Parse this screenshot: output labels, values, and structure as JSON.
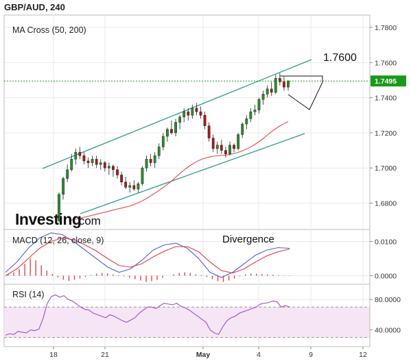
{
  "title": "GBP/AUD, 240",
  "brand": {
    "name": "Investing",
    "suffix": ".com"
  },
  "chart_data": [
    {
      "panel": "price",
      "type": "candlestick",
      "label": "MA Cross (50, 200)",
      "ylim": [
        1.665,
        1.787
      ],
      "yticks": [
        "1.7800",
        "1.7600",
        "1.7400",
        "1.7200",
        "1.7000",
        "1.6800"
      ],
      "ytick_values": [
        1.78,
        1.76,
        1.74,
        1.72,
        1.7,
        1.68
      ],
      "xlabels": [
        "18",
        "21",
        "May",
        "4",
        "9",
        "12"
      ],
      "current_price": {
        "label": "1.7495",
        "value": 1.7495,
        "color": "#1a9a1a"
      },
      "annotations": {
        "target": "1.7600"
      },
      "candles": [
        [
          1.67,
          1.686,
          1.669,
          1.685
        ],
        [
          1.685,
          1.695,
          1.682,
          1.694
        ],
        [
          1.694,
          1.702,
          1.692,
          1.699
        ],
        [
          1.699,
          1.708,
          1.698,
          1.705
        ],
        [
          1.705,
          1.711,
          1.702,
          1.709
        ],
        [
          1.709,
          1.712,
          1.705,
          1.707
        ],
        [
          1.707,
          1.709,
          1.702,
          1.704
        ],
        [
          1.704,
          1.706,
          1.7,
          1.703
        ],
        [
          1.703,
          1.707,
          1.701,
          1.705
        ],
        [
          1.705,
          1.707,
          1.7,
          1.702
        ],
        [
          1.702,
          1.705,
          1.699,
          1.703
        ],
        [
          1.703,
          1.704,
          1.698,
          1.7
        ],
        [
          1.7,
          1.703,
          1.696,
          1.701
        ],
        [
          1.701,
          1.702,
          1.695,
          1.699
        ],
        [
          1.699,
          1.701,
          1.694,
          1.696
        ],
        [
          1.696,
          1.698,
          1.69,
          1.692
        ],
        [
          1.692,
          1.695,
          1.688,
          1.689
        ],
        [
          1.689,
          1.692,
          1.686,
          1.69
        ],
        [
          1.69,
          1.693,
          1.687,
          1.688
        ],
        [
          1.688,
          1.692,
          1.686,
          1.691
        ],
        [
          1.691,
          1.701,
          1.69,
          1.7
        ],
        [
          1.7,
          1.707,
          1.698,
          1.705
        ],
        [
          1.705,
          1.708,
          1.701,
          1.703
        ],
        [
          1.703,
          1.709,
          1.7,
          1.707
        ],
        [
          1.707,
          1.714,
          1.705,
          1.712
        ],
        [
          1.712,
          1.72,
          1.71,
          1.718
        ],
        [
          1.718,
          1.723,
          1.715,
          1.722
        ],
        [
          1.722,
          1.727,
          1.719,
          1.72
        ],
        [
          1.72,
          1.728,
          1.718,
          1.726
        ],
        [
          1.726,
          1.73,
          1.722,
          1.729
        ],
        [
          1.729,
          1.734,
          1.726,
          1.732
        ],
        [
          1.732,
          1.734,
          1.727,
          1.73
        ],
        [
          1.73,
          1.736,
          1.728,
          1.734
        ],
        [
          1.734,
          1.737,
          1.73,
          1.732
        ],
        [
          1.732,
          1.735,
          1.728,
          1.73
        ],
        [
          1.73,
          1.732,
          1.722,
          1.724
        ],
        [
          1.724,
          1.726,
          1.715,
          1.717
        ],
        [
          1.717,
          1.719,
          1.709,
          1.711
        ],
        [
          1.711,
          1.715,
          1.708,
          1.713
        ],
        [
          1.713,
          1.716,
          1.708,
          1.71
        ],
        [
          1.71,
          1.712,
          1.706,
          1.708
        ],
        [
          1.708,
          1.715,
          1.707,
          1.713
        ],
        [
          1.713,
          1.714,
          1.709,
          1.711
        ],
        [
          1.711,
          1.72,
          1.71,
          1.719
        ],
        [
          1.719,
          1.726,
          1.717,
          1.725
        ],
        [
          1.725,
          1.73,
          1.722,
          1.728
        ],
        [
          1.728,
          1.734,
          1.726,
          1.732
        ],
        [
          1.732,
          1.736,
          1.73,
          1.733
        ],
        [
          1.733,
          1.74,
          1.731,
          1.739
        ],
        [
          1.739,
          1.744,
          1.736,
          1.742
        ],
        [
          1.742,
          1.747,
          1.74,
          1.745
        ],
        [
          1.745,
          1.749,
          1.741,
          1.743
        ],
        [
          1.743,
          1.753,
          1.742,
          1.751
        ],
        [
          1.751,
          1.754,
          1.747,
          1.749
        ],
        [
          1.749,
          1.752,
          1.744,
          1.746
        ],
        [
          1.746,
          1.75,
          1.744,
          1.7495
        ]
      ],
      "ma": [
        [
          1.67,
          1.6705,
          1.671,
          1.6716,
          1.6722,
          1.6728,
          1.6734,
          1.674,
          1.6746,
          1.6752,
          1.6758,
          1.6764,
          1.677,
          1.6776,
          1.6782,
          1.679,
          1.68,
          1.6812,
          1.6825,
          1.684,
          1.6856,
          1.6872,
          1.689,
          1.6908,
          1.6928,
          1.695,
          1.6972,
          1.6992,
          1.701,
          1.7026,
          1.704,
          1.705,
          1.7058,
          1.7064,
          1.7068,
          1.707,
          1.7072,
          1.7075,
          1.708,
          1.7086,
          1.7094,
          1.7104,
          1.7116,
          1.713,
          1.7146,
          1.7164,
          1.7184,
          1.7204,
          1.7222,
          1.7238,
          1.7252,
          1.7264
        ]
      ]
    },
    {
      "panel": "macd",
      "type": "line",
      "label": "MACD (12, 26, close, 9)",
      "annotation": "Divergence",
      "ylim": [
        -0.0025,
        0.0135
      ],
      "yticks": [
        "0.0100",
        "0.0000"
      ],
      "ytick_values": [
        0.01,
        0.0
      ],
      "series": [
        {
          "color": "#4f5fe0",
          "values": [
            0.001,
            0.004,
            0.008,
            0.011,
            0.0125,
            0.012,
            0.01,
            0.0075,
            0.005,
            0.0025,
            0.001,
            0.002,
            0.0045,
            0.0075,
            0.009,
            0.0095,
            0.008,
            0.005,
            0.001,
            -0.0005,
            0.001,
            0.0035,
            0.006,
            0.0075,
            0.0082,
            0.008
          ]
        },
        {
          "color": "#e23a3a",
          "values": [
            0.0,
            0.002,
            0.005,
            0.008,
            0.01,
            0.011,
            0.0105,
            0.009,
            0.0072,
            0.005,
            0.003,
            0.0025,
            0.0035,
            0.0055,
            0.0072,
            0.0085,
            0.0085,
            0.007,
            0.004,
            0.0015,
            0.0008,
            0.002,
            0.004,
            0.0058,
            0.007,
            0.0078
          ]
        }
      ],
      "histogram": [
        0.0005,
        0.001,
        0.002,
        0.0035,
        0.005,
        0.0045,
        0.003,
        0.0015,
        0.0005,
        -0.0005,
        -0.0012,
        -0.0015,
        -0.0012,
        -0.0008,
        -0.0004,
        0.0002,
        0.0006,
        0.0008,
        0.0007,
        0.0004,
        0.0002,
        -0.0002,
        -0.0006,
        -0.001,
        -0.0014,
        -0.0018,
        -0.0016,
        -0.0012,
        -0.0006,
        0.0,
        0.0004,
        0.0008,
        0.001,
        0.0008,
        0.0004,
        0.0002,
        -0.0004,
        -0.001,
        -0.0016,
        -0.0018,
        -0.0014,
        -0.0008,
        -0.0002,
        0.0004,
        0.0006,
        0.0006,
        0.0005,
        0.0004,
        0.0003,
        0.0002,
        0.0001,
        0.0001
      ]
    },
    {
      "panel": "rsi",
      "type": "line",
      "label": "RSI (14)",
      "ylim": [
        18,
        100
      ],
      "yticks": [
        "80.0000",
        "40.0000"
      ],
      "ytick_values": [
        80,
        40
      ],
      "bands": [
        70,
        30
      ],
      "series": [
        {
          "color": "#9a4fc0",
          "values": [
            33,
            35,
            34,
            38,
            37,
            36,
            40,
            39,
            41,
            55,
            75,
            84,
            86,
            83,
            85,
            80,
            78,
            74,
            70,
            67,
            66,
            62,
            60,
            58,
            56,
            60,
            58,
            55,
            52,
            50,
            53,
            56,
            62,
            66,
            70,
            70,
            68,
            72,
            75,
            74,
            73,
            75,
            71,
            69,
            66,
            62,
            58,
            54,
            50,
            40,
            36,
            34,
            44,
            52,
            56,
            58,
            62,
            64,
            66,
            68,
            70,
            74,
            75,
            76,
            78,
            77,
            70,
            72,
            70
          ]
        }
      ]
    }
  ]
}
